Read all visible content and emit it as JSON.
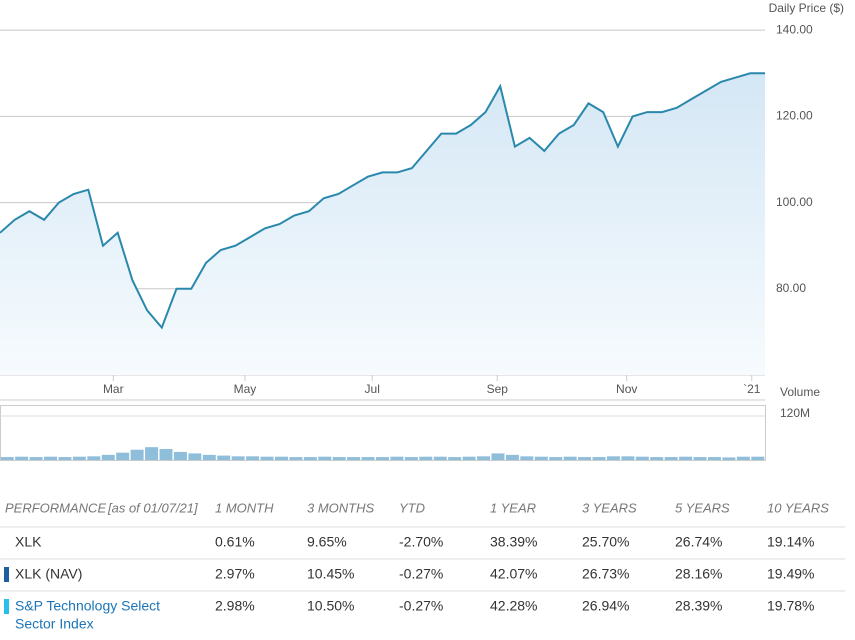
{
  "chart_data": {
    "type": "line",
    "y_axis_label": "Daily Price ($)",
    "color": "#2a88ad",
    "xlim": [
      0,
      52
    ],
    "xticks": [
      {
        "value": 7.7,
        "label": "Mar"
      },
      {
        "value": 16.65,
        "label": "May"
      },
      {
        "value": 25.3,
        "label": "Jul"
      },
      {
        "value": 33.8,
        "label": "Sep"
      },
      {
        "value": 42.6,
        "label": "Nov"
      },
      {
        "value": 51.1,
        "label": "`21"
      }
    ],
    "ylim": [
      60,
      147
    ],
    "yticks": [
      {
        "value": 80,
        "label": "80.00"
      },
      {
        "value": 100,
        "label": "100.00"
      },
      {
        "value": 120,
        "label": "120.00"
      },
      {
        "value": 140,
        "label": "140.00"
      }
    ],
    "grid": true,
    "values": [
      93,
      96,
      98,
      96,
      100,
      102,
      103,
      90,
      93,
      82,
      75,
      71,
      80,
      80,
      86,
      89,
      90,
      92,
      94,
      95,
      97,
      98,
      101,
      102,
      104,
      106,
      107,
      107,
      108,
      112,
      116,
      116,
      118,
      121,
      127,
      113,
      115,
      112,
      116,
      118,
      123,
      121,
      113,
      120,
      121,
      121,
      122,
      124,
      126,
      128,
      129,
      130,
      130
    ],
    "volume": {
      "type": "bar",
      "label": "Volume",
      "color": "#8fbedb",
      "ylim": [
        0,
        150
      ],
      "yticks": [
        {
          "value": 120,
          "label": "120M"
        }
      ],
      "values": [
        8,
        9,
        8,
        9,
        8,
        9,
        10,
        14,
        20,
        28,
        35,
        30,
        22,
        18,
        14,
        12,
        10,
        10,
        9,
        9,
        8,
        8,
        9,
        8,
        8,
        8,
        8,
        9,
        8,
        9,
        9,
        8,
        9,
        10,
        18,
        14,
        10,
        9,
        8,
        9,
        8,
        8,
        10,
        10,
        9,
        8,
        8,
        9,
        8,
        8,
        7,
        9,
        9
      ]
    }
  },
  "table": {
    "title": "PERFORMANCE",
    "as_of": "[as of 01/07/21]",
    "columns": [
      "1 MONTH",
      "3 MONTHS",
      "YTD",
      "1 YEAR",
      "3 YEARS",
      "5 YEARS",
      "10 YEARS"
    ],
    "rows": [
      {
        "label": "XLK",
        "values": [
          "0.61%",
          "9.65%",
          "-2.70%",
          "38.39%",
          "25.70%",
          "26.74%",
          "19.14%"
        ]
      },
      {
        "label": "XLK (NAV)",
        "values": [
          "2.97%",
          "10.45%",
          "-0.27%",
          "42.07%",
          "26.73%",
          "28.16%",
          "19.49%"
        ]
      },
      {
        "label": [
          "S&P Technology Select",
          "Sector Index"
        ],
        "values": [
          "2.98%",
          "10.50%",
          "-0.27%",
          "42.28%",
          "26.94%",
          "28.39%",
          "19.78%"
        ]
      }
    ]
  }
}
